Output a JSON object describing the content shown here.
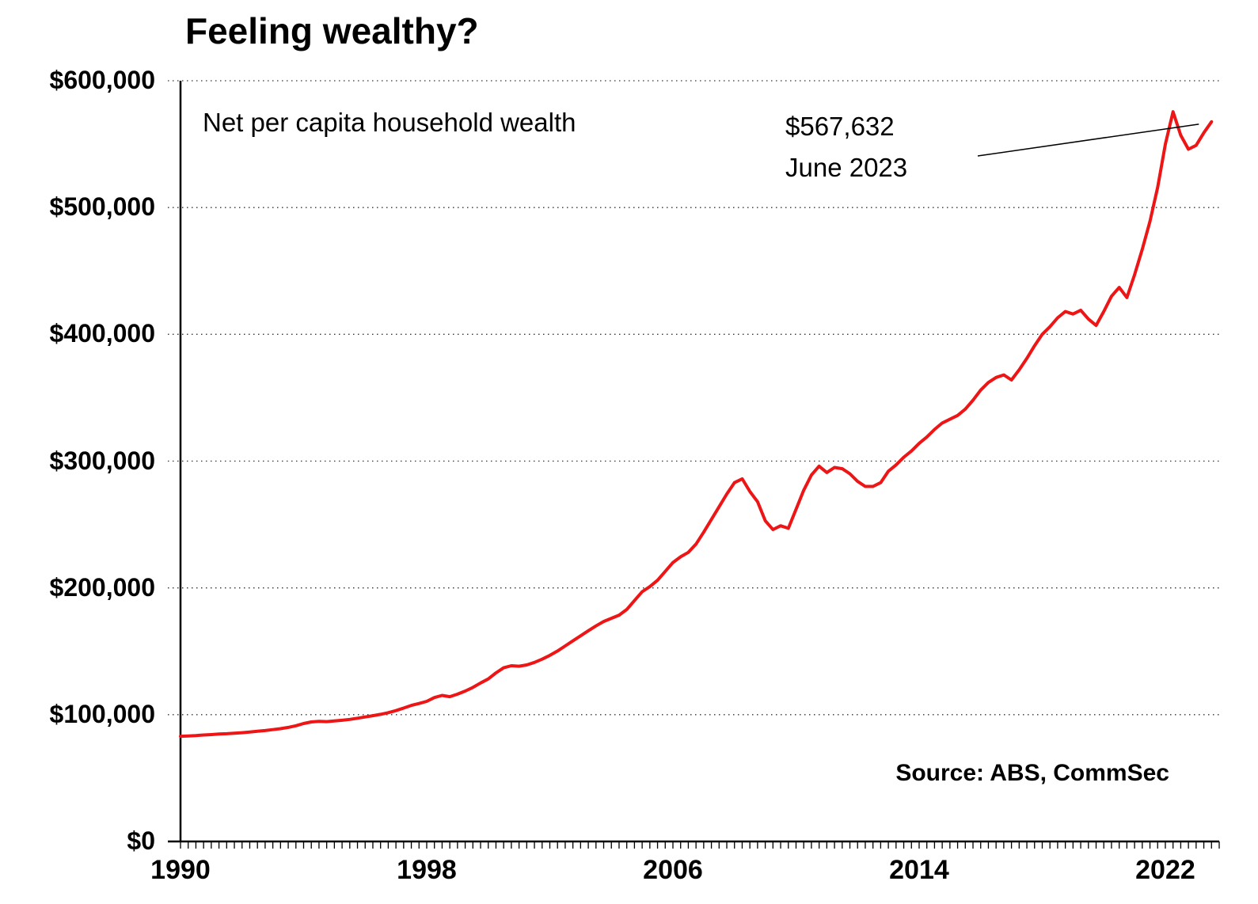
{
  "page": {
    "background": "#ffffff",
    "text_color": "#000000"
  },
  "chart_data": {
    "type": "line",
    "title": "Feeling wealthy?",
    "series_label": "Net per capita household wealth",
    "annotation": {
      "line1": "$567,632",
      "line2": "June 2023"
    },
    "source": "Source: ABS, CommSec",
    "line_color": "#ed1515",
    "grid_color": "#333333",
    "axis_color": "#000000",
    "legend_position": "none",
    "grid": "horizontal-dotted",
    "ylim": [
      0,
      600000
    ],
    "xlim": [
      1990,
      2023.75
    ],
    "y_ticks": [
      {
        "value": 0,
        "label": "$0"
      },
      {
        "value": 100000,
        "label": "$100,000"
      },
      {
        "value": 200000,
        "label": "$200,000"
      },
      {
        "value": 300000,
        "label": "$300,000"
      },
      {
        "value": 400000,
        "label": "$400,000"
      },
      {
        "value": 500000,
        "label": "$500,000"
      },
      {
        "value": 600000,
        "label": "$600,000"
      }
    ],
    "x_ticks": [
      {
        "value": 1990,
        "label": "1990"
      },
      {
        "value": 1998,
        "label": "1998"
      },
      {
        "value": 2006,
        "label": "2006"
      },
      {
        "value": 2014,
        "label": "2014"
      },
      {
        "value": 2022,
        "label": "2022"
      }
    ],
    "minor_tick_step_years": 0.25,
    "x_start": 1990,
    "x_step": 0.25,
    "values": [
      83000,
      83200,
      83500,
      84000,
      84300,
      84700,
      85000,
      85400,
      85800,
      86300,
      86900,
      87500,
      88200,
      89000,
      90000,
      91300,
      93000,
      94300,
      94800,
      94500,
      95000,
      95600,
      96300,
      97200,
      98200,
      99200,
      100300,
      101600,
      103200,
      105200,
      107300,
      108800,
      110500,
      113500,
      115200,
      114200,
      116200,
      118600,
      121500,
      125000,
      128200,
      133000,
      137000,
      138600,
      138200,
      139200,
      141200,
      143800,
      146800,
      150200,
      154200,
      158200,
      162200,
      166200,
      170000,
      173500,
      176000,
      178500,
      183000,
      190000,
      197000,
      201000,
      206000,
      213000,
      220000,
      224500,
      228000,
      234500,
      244000,
      254000,
      264000,
      274000,
      283000,
      286000,
      276000,
      268000,
      253000,
      246000,
      249000,
      247000,
      262000,
      277000,
      289000,
      296000,
      291000,
      295000,
      294000,
      290000,
      284000,
      280000,
      280000,
      283000,
      292000,
      297000,
      303000,
      308000,
      314000,
      319000,
      325000,
      330000,
      333000,
      336000,
      341000,
      348000,
      356000,
      362000,
      366000,
      368000,
      364000,
      372000,
      381000,
      391000,
      400000,
      406000,
      413000,
      418000,
      416000,
      419000,
      412000,
      407000,
      418000,
      430000,
      437000,
      429000,
      447000,
      467000,
      489000,
      516000,
      550000,
      575500,
      557000,
      546000,
      549000,
      559000,
      567632
    ]
  }
}
